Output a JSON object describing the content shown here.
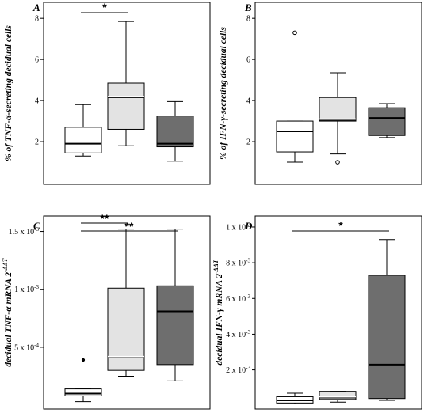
{
  "chart_data": [
    {
      "type": "box",
      "panel": "A",
      "ylabel": "% of TNF-α-secreting decidual cells",
      "yticks": [
        {
          "v": 2,
          "label": "2"
        },
        {
          "v": 4,
          "label": "4"
        },
        {
          "v": 6,
          "label": "6"
        },
        {
          "v": 8,
          "label": "8"
        }
      ],
      "ylim": [
        0,
        8.7
      ],
      "boxes": [
        {
          "fill": "#ffffff",
          "whislo": 1.3,
          "q1": 1.45,
          "med": 1.9,
          "q3": 2.7,
          "whishi": 3.8,
          "fliers": []
        },
        {
          "fill": "#e3e3e3",
          "whislo": 1.8,
          "q1": 2.6,
          "med": 4.2,
          "q3": 4.85,
          "whishi": 7.85,
          "fliers": []
        },
        {
          "fill": "#6e6e6e",
          "whislo": 1.05,
          "q1": 1.75,
          "med": 1.9,
          "q3": 3.25,
          "whishi": 3.95,
          "fliers": []
        }
      ],
      "significance": [
        {
          "from": 1,
          "to": 2,
          "label": "*"
        }
      ]
    },
    {
      "type": "box",
      "panel": "B",
      "ylabel": "% of IFN-γ-secreting decidual cells",
      "yticks": [
        {
          "v": 2,
          "label": "2"
        },
        {
          "v": 4,
          "label": "4"
        },
        {
          "v": 6,
          "label": "6"
        },
        {
          "v": 8,
          "label": "8"
        }
      ],
      "ylim": [
        0,
        8.7
      ],
      "boxes": [
        {
          "fill": "#ffffff",
          "whislo": 1.0,
          "q1": 1.5,
          "med": 2.5,
          "q3": 3.0,
          "whishi": 3.0,
          "fliers": [
            7.3
          ]
        },
        {
          "fill": "#e3e3e3",
          "whislo": 1.4,
          "q1": 3.0,
          "med": 3.1,
          "q3": 4.15,
          "whishi": 5.35,
          "fliers": [
            1.0
          ]
        },
        {
          "fill": "#6e6e6e",
          "whislo": 2.2,
          "q1": 2.3,
          "med": 3.15,
          "q3": 3.65,
          "whishi": 3.85,
          "fliers": []
        }
      ],
      "significance": []
    },
    {
      "type": "box",
      "panel": "C",
      "ylabel": "decidual TNF-α mRNA 2^-ΔΔT",
      "ylabel_base": "decidual TNF-α mRNA 2",
      "ylabel_sup": "-ΔΔT",
      "yticks": [
        {
          "v": 0.0005,
          "label": "5 x 10",
          "sup": "-4"
        },
        {
          "v": 0.001,
          "label": "1 x 10",
          "sup": "-3"
        },
        {
          "v": 0.0015,
          "label": "1.5 x 10",
          "sup": "-3"
        }
      ],
      "ylim": [
        -2e-05,
        0.00162
      ],
      "boxes": [
        {
          "fill": "#ffffff",
          "whislo": 3e-05,
          "q1": 8e-05,
          "med": 0.0001,
          "q3": 0.00014,
          "whishi": 0.00014,
          "fliers": [
            0.00039
          ]
        },
        {
          "fill": "#e3e3e3",
          "whislo": 0.00025,
          "q1": 0.0003,
          "med": 0.00042,
          "q3": 0.00101,
          "whishi": 0.00152,
          "fliers": []
        },
        {
          "fill": "#6e6e6e",
          "whislo": 0.00021,
          "q1": 0.00035,
          "med": 0.00081,
          "q3": 0.00103,
          "whishi": 0.00152,
          "fliers": []
        }
      ],
      "significance": [
        {
          "from": 1,
          "to": 2,
          "label": "**"
        },
        {
          "from": 1,
          "to": 3,
          "label": "**"
        }
      ]
    },
    {
      "type": "box",
      "panel": "D",
      "ylabel": "decidual IFN-γ mRNA 2^-ΔΔT",
      "ylabel_base": "decidual IFN-γ mRNA 2",
      "ylabel_sup": "-ΔΔT",
      "yticks": [
        {
          "v": 0.002,
          "label": "2 x 10",
          "sup": "-3"
        },
        {
          "v": 0.004,
          "label": "4 x 10",
          "sup": "-3"
        },
        {
          "v": 0.006,
          "label": "6 x 10",
          "sup": "-3"
        },
        {
          "v": 0.008,
          "label": "8 x 10",
          "sup": "-3"
        },
        {
          "v": 0.01,
          "label": "1 x 10",
          "sup": "-2"
        }
      ],
      "ylim": [
        -0.0001,
        0.01053
      ],
      "boxes": [
        {
          "fill": "#ffffff",
          "whislo": 0.0001,
          "q1": 0.00015,
          "med": 0.0003,
          "q3": 0.0005,
          "whishi": 0.0007,
          "fliers": []
        },
        {
          "fill": "#e3e3e3",
          "whislo": 0.0002,
          "q1": 0.00035,
          "med": 0.0005,
          "q3": 0.0008,
          "whishi": 0.0008,
          "fliers": []
        },
        {
          "fill": "#6e6e6e",
          "whislo": 0.0003,
          "q1": 0.0004,
          "med": 0.0023,
          "q3": 0.0073,
          "whishi": 0.0093,
          "fliers": []
        }
      ],
      "significance": [
        {
          "from": 1,
          "to": 3,
          "label": "*"
        }
      ]
    }
  ]
}
